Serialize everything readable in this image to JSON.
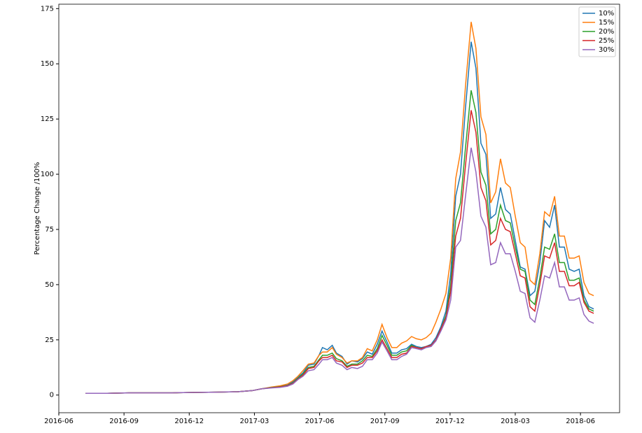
{
  "chart_data": {
    "type": "line",
    "ylabel": "Percentage Change /100%",
    "legend": "upper right",
    "xlim": [
      0,
      25.8
    ],
    "xticks": [
      {
        "value": 0,
        "label": "2016-06"
      },
      {
        "value": 3,
        "label": "2016-09"
      },
      {
        "value": 6,
        "label": "2016-12"
      },
      {
        "value": 9,
        "label": "2017-03"
      },
      {
        "value": 12,
        "label": "2017-06"
      },
      {
        "value": 15,
        "label": "2017-09"
      },
      {
        "value": 18,
        "label": "2017-12"
      },
      {
        "value": 21,
        "label": "2018-03"
      },
      {
        "value": 24,
        "label": "2018-06"
      }
    ],
    "ylim": [
      -8,
      177
    ],
    "yticks": [
      0,
      25,
      50,
      75,
      100,
      125,
      150,
      175
    ],
    "x": [
      1.23,
      2.23,
      3.23,
      4.23,
      5.23,
      6.23,
      7.23,
      8.23,
      8.9,
      9.32,
      9.77,
      10.19,
      10.52,
      10.77,
      11,
      11.23,
      11.48,
      11.74,
      11.97,
      12.13,
      12.35,
      12.58,
      12.77,
      13.03,
      13.26,
      13.48,
      13.74,
      13.97,
      14.19,
      14.42,
      14.65,
      14.87,
      15.1,
      15.32,
      15.55,
      15.77,
      16,
      16.23,
      16.45,
      16.68,
      16.9,
      17.13,
      17.35,
      17.58,
      17.81,
      18.03,
      18.26,
      18.48,
      18.71,
      18.97,
      19.19,
      19.42,
      19.65,
      19.87,
      20.1,
      20.32,
      20.55,
      20.77,
      21,
      21.23,
      21.45,
      21.68,
      21.9,
      22.13,
      22.35,
      22.58,
      22.81,
      23.03,
      23.26,
      23.48,
      23.71,
      23.94,
      24.16,
      24.39,
      24.61
    ],
    "series": [
      {
        "name": "10%",
        "color": "#1f77b4",
        "values": [
          0.8,
          0.8,
          1.0,
          1.0,
          1.0,
          1.2,
          1.3,
          1.5,
          2.0,
          2.8,
          3.5,
          4.0,
          4.5,
          6.0,
          8.0,
          10.0,
          13.5,
          14.0,
          18.0,
          21.5,
          20.5,
          22.5,
          19.0,
          17.5,
          14.0,
          15.5,
          15.0,
          16.5,
          19.5,
          18.5,
          23.0,
          29.0,
          24.0,
          19.0,
          19.0,
          20.5,
          21.0,
          23.0,
          22.0,
          21.5,
          22.0,
          23.0,
          26.0,
          31.0,
          38.0,
          55.0,
          90.0,
          100.0,
          130.0,
          160.0,
          148,
          114,
          109,
          80,
          82,
          94,
          84,
          82,
          70,
          58,
          57,
          45,
          47,
          60,
          79,
          76,
          86,
          67,
          67,
          57,
          56,
          57,
          45,
          40,
          39
        ]
      },
      {
        "name": "15%",
        "color": "#ff7f0e",
        "values": [
          0.8,
          0.8,
          1.0,
          1.0,
          1.0,
          1.2,
          1.3,
          1.5,
          2.0,
          2.8,
          3.6,
          4.2,
          5.0,
          6.5,
          8.5,
          11,
          14,
          14.5,
          18,
          19.5,
          19.5,
          21.5,
          18.5,
          17,
          14.5,
          15.5,
          15.5,
          17,
          21,
          20,
          25,
          32,
          26,
          21.5,
          21.5,
          23.5,
          24.5,
          26.5,
          25.5,
          25,
          26,
          28,
          33,
          39,
          46,
          62,
          98,
          110,
          140,
          169,
          157,
          126,
          118,
          87,
          92,
          107,
          96,
          94,
          81,
          69,
          67,
          52,
          50,
          64,
          83,
          81,
          90,
          72,
          72,
          62,
          62,
          63,
          51,
          46,
          45
        ]
      },
      {
        "name": "20%",
        "color": "#2ca02c",
        "values": [
          0.8,
          0.8,
          1.0,
          1.0,
          1.0,
          1.2,
          1.3,
          1.5,
          2.0,
          2.8,
          3.4,
          3.8,
          4.3,
          5.5,
          7.5,
          9.5,
          12.5,
          13,
          16,
          18,
          18,
          19,
          16.5,
          15.5,
          13,
          14,
          14,
          15.5,
          18,
          17.5,
          21,
          27,
          22.5,
          18,
          18,
          19.5,
          20,
          22.5,
          21.5,
          21,
          22,
          22.5,
          25,
          30,
          36,
          50,
          79,
          87,
          112,
          138,
          128,
          101,
          95,
          73,
          75,
          86,
          79,
          78,
          67,
          57,
          56,
          43,
          41,
          53,
          67,
          66,
          73,
          60,
          60,
          52,
          52,
          53,
          43,
          39,
          38
        ]
      },
      {
        "name": "25%",
        "color": "#d62728",
        "values": [
          0.8,
          0.8,
          1.0,
          1.0,
          1.0,
          1.2,
          1.3,
          1.5,
          2.0,
          2.8,
          3.3,
          3.7,
          4.2,
          5.3,
          7.2,
          9,
          12,
          12.5,
          15.5,
          17,
          17,
          18,
          15.5,
          15,
          12.5,
          13.5,
          13.5,
          14.5,
          17,
          17,
          20,
          25,
          21,
          17,
          17,
          18.5,
          19,
          22,
          21.5,
          21,
          22,
          22.5,
          25,
          30,
          35,
          47,
          72,
          80,
          104,
          129,
          119,
          94,
          88,
          68,
          70,
          80,
          75,
          74,
          64,
          54,
          53,
          40,
          38,
          50,
          63,
          62,
          69,
          56,
          56,
          49.5,
          49.5,
          51,
          42,
          38,
          37
        ]
      },
      {
        "name": "30%",
        "color": "#9467bd",
        "values": [
          0.8,
          0.8,
          1.0,
          1.0,
          1.0,
          1.2,
          1.3,
          1.5,
          2.0,
          2.8,
          3.2,
          3.5,
          4,
          5,
          7,
          8.5,
          11,
          11.5,
          14,
          16,
          16,
          17,
          14.5,
          13.5,
          11.5,
          12.5,
          12,
          13,
          16,
          16,
          19,
          24,
          20,
          16,
          16,
          17.5,
          18.5,
          21.5,
          21,
          20.5,
          21.5,
          22,
          24.5,
          29,
          34,
          43,
          67,
          70,
          90,
          112,
          101,
          81,
          76,
          59,
          60,
          69,
          64,
          64,
          56,
          47,
          46,
          35,
          33,
          43,
          54,
          53,
          60,
          49,
          49,
          43,
          43,
          44,
          36.5,
          33.5,
          32.5
        ]
      }
    ]
  }
}
